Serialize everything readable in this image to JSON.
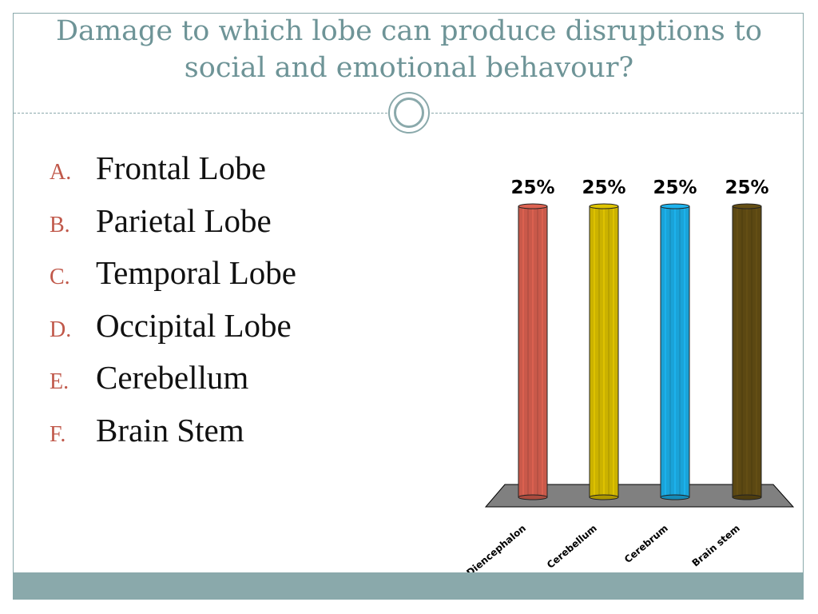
{
  "slide": {
    "title": "Damage to which lobe can produce disruptions to social and emotional behavour?"
  },
  "options": [
    {
      "letter": "A.",
      "text": "Frontal Lobe"
    },
    {
      "letter": "B.",
      "text": "Parietal Lobe"
    },
    {
      "letter": "C.",
      "text": "Temporal Lobe"
    },
    {
      "letter": "D.",
      "text": "Occipital Lobe"
    },
    {
      "letter": "E.",
      "text": "Cerebellum"
    },
    {
      "letter": "F.",
      "text": "Brain Stem"
    }
  ],
  "colors": {
    "accent": "#8aa9ab",
    "title": "#6e9497",
    "option_letter": "#c0584a"
  },
  "chart_data": {
    "type": "bar",
    "categories": [
      "Diencephalon",
      "Cerebellum",
      "Cerebrum",
      "Brain stem"
    ],
    "values": [
      25,
      25,
      25,
      25
    ],
    "data_labels": [
      "25%",
      "25%",
      "25%",
      "25%"
    ],
    "ylim": [
      0,
      25
    ],
    "title": "",
    "xlabel": "",
    "ylabel": "",
    "grid": false,
    "bar_colors": [
      "#c9594a",
      "#cbb200",
      "#1aa3d8",
      "#5c4812"
    ],
    "floor_color": "#808080"
  }
}
